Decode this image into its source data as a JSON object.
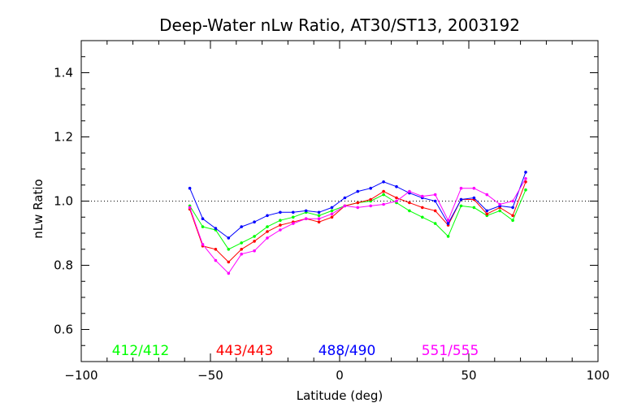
{
  "chart_data": {
    "type": "line",
    "title": "Deep-Water nLw Ratio, AT30/ST13, 2003192",
    "xlabel": "Latitude (deg)",
    "ylabel": "nLw Ratio",
    "xlim": [
      -100,
      100
    ],
    "ylim": [
      0.5,
      1.5
    ],
    "xticks": [
      -100,
      -50,
      0,
      50,
      100
    ],
    "xtick_labels": [
      "−100",
      "−50",
      "0",
      "50",
      "100"
    ],
    "yticks": [
      0.6,
      0.8,
      1.0,
      1.2,
      1.4
    ],
    "ytick_labels": [
      "0.6",
      "0.8",
      "1.0",
      "1.2",
      "1.4"
    ],
    "reference_line": 1.0,
    "grid": false,
    "legend_position": "bottom",
    "x": [
      -58,
      -53,
      -48,
      -43,
      -38,
      -33,
      -28,
      -23,
      -18,
      -13,
      -8,
      -3,
      2,
      7,
      12,
      17,
      22,
      27,
      32,
      37,
      42,
      47,
      52,
      57,
      62,
      67,
      72
    ],
    "series": [
      {
        "name": "412/412",
        "color": "#00ff00",
        "values": [
          0.985,
          0.92,
          0.91,
          0.85,
          0.87,
          0.89,
          0.92,
          0.94,
          0.95,
          0.965,
          0.955,
          0.97,
          0.985,
          0.995,
          1.0,
          1.02,
          0.995,
          0.97,
          0.95,
          0.93,
          0.89,
          0.985,
          0.98,
          0.955,
          0.97,
          0.94,
          1.035
        ]
      },
      {
        "name": "443/443",
        "color": "#ff0000",
        "values": [
          0.975,
          0.86,
          0.85,
          0.81,
          0.85,
          0.875,
          0.905,
          0.925,
          0.935,
          0.945,
          0.935,
          0.95,
          0.985,
          0.995,
          1.005,
          1.03,
          1.01,
          0.995,
          0.98,
          0.97,
          0.925,
          1.005,
          1.005,
          0.96,
          0.98,
          0.955,
          1.06
        ]
      },
      {
        "name": "488/490",
        "color": "#0000ff",
        "values": [
          1.04,
          0.945,
          0.915,
          0.885,
          0.92,
          0.935,
          0.955,
          0.965,
          0.965,
          0.97,
          0.965,
          0.98,
          1.01,
          1.03,
          1.04,
          1.06,
          1.045,
          1.025,
          1.01,
          1.0,
          0.93,
          1.005,
          1.01,
          0.97,
          0.985,
          0.98,
          1.09
        ]
      },
      {
        "name": "551/555",
        "color": "#ff00ff",
        "values": [
          0.98,
          0.865,
          0.815,
          0.775,
          0.835,
          0.845,
          0.885,
          0.91,
          0.93,
          0.945,
          0.945,
          0.96,
          0.985,
          0.98,
          0.985,
          0.99,
          1.0,
          1.03,
          1.015,
          1.02,
          0.94,
          1.04,
          1.04,
          1.02,
          0.99,
          1.0,
          1.07
        ]
      }
    ]
  }
}
